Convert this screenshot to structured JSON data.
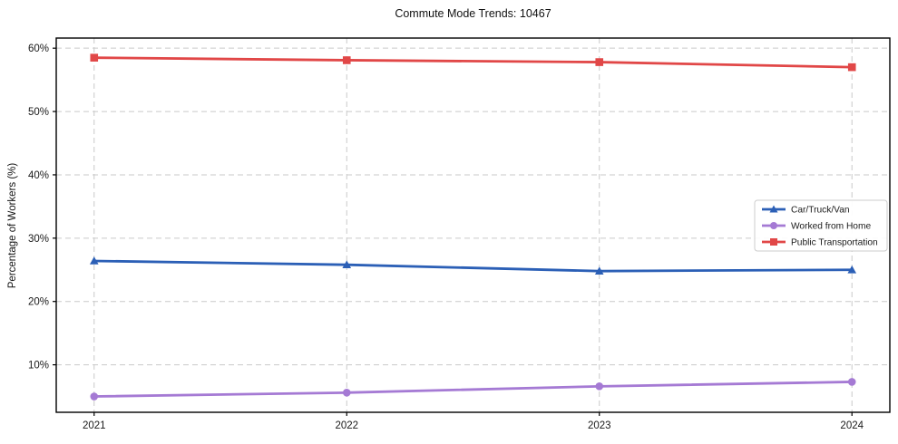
{
  "title": "Commute Mode Trends: 10467",
  "colors": {
    "background": "#ffffff",
    "grid": "#c9c9c9",
    "axis": "#000000",
    "text": "#1a1a1a",
    "legend_border": "#cccccc",
    "series_blue": "#2b5fb6",
    "series_purple": "#a57ad4",
    "series_red": "#e14747"
  },
  "chart_data": {
    "type": "line",
    "title": "Commute Mode Trends: 10467",
    "xlabel": "",
    "ylabel": "Percentage of Workers (%)",
    "x": [
      2021,
      2022,
      2023,
      2024
    ],
    "x_tick_labels": [
      "2021",
      "2022",
      "2023",
      "2024"
    ],
    "y_ticks": [
      10,
      20,
      30,
      40,
      50,
      60
    ],
    "y_tick_labels": [
      "10%",
      "20%",
      "30%",
      "40%",
      "50%",
      "60%"
    ],
    "xlim": [
      2020.85,
      2024.15
    ],
    "ylim": [
      2.5,
      61.6
    ],
    "grid": true,
    "legend_position": "right-middle",
    "series": [
      {
        "name": "Car/Truck/Van",
        "color": "#2b5fb6",
        "marker": "triangle",
        "values": [
          26.4,
          25.8,
          24.8,
          25.0
        ]
      },
      {
        "name": "Worked from Home",
        "color": "#a57ad4",
        "marker": "circle",
        "values": [
          5.0,
          5.6,
          6.6,
          7.3
        ]
      },
      {
        "name": "Public Transportation",
        "color": "#e14747",
        "marker": "square",
        "values": [
          58.5,
          58.1,
          57.8,
          57.0
        ]
      }
    ]
  }
}
